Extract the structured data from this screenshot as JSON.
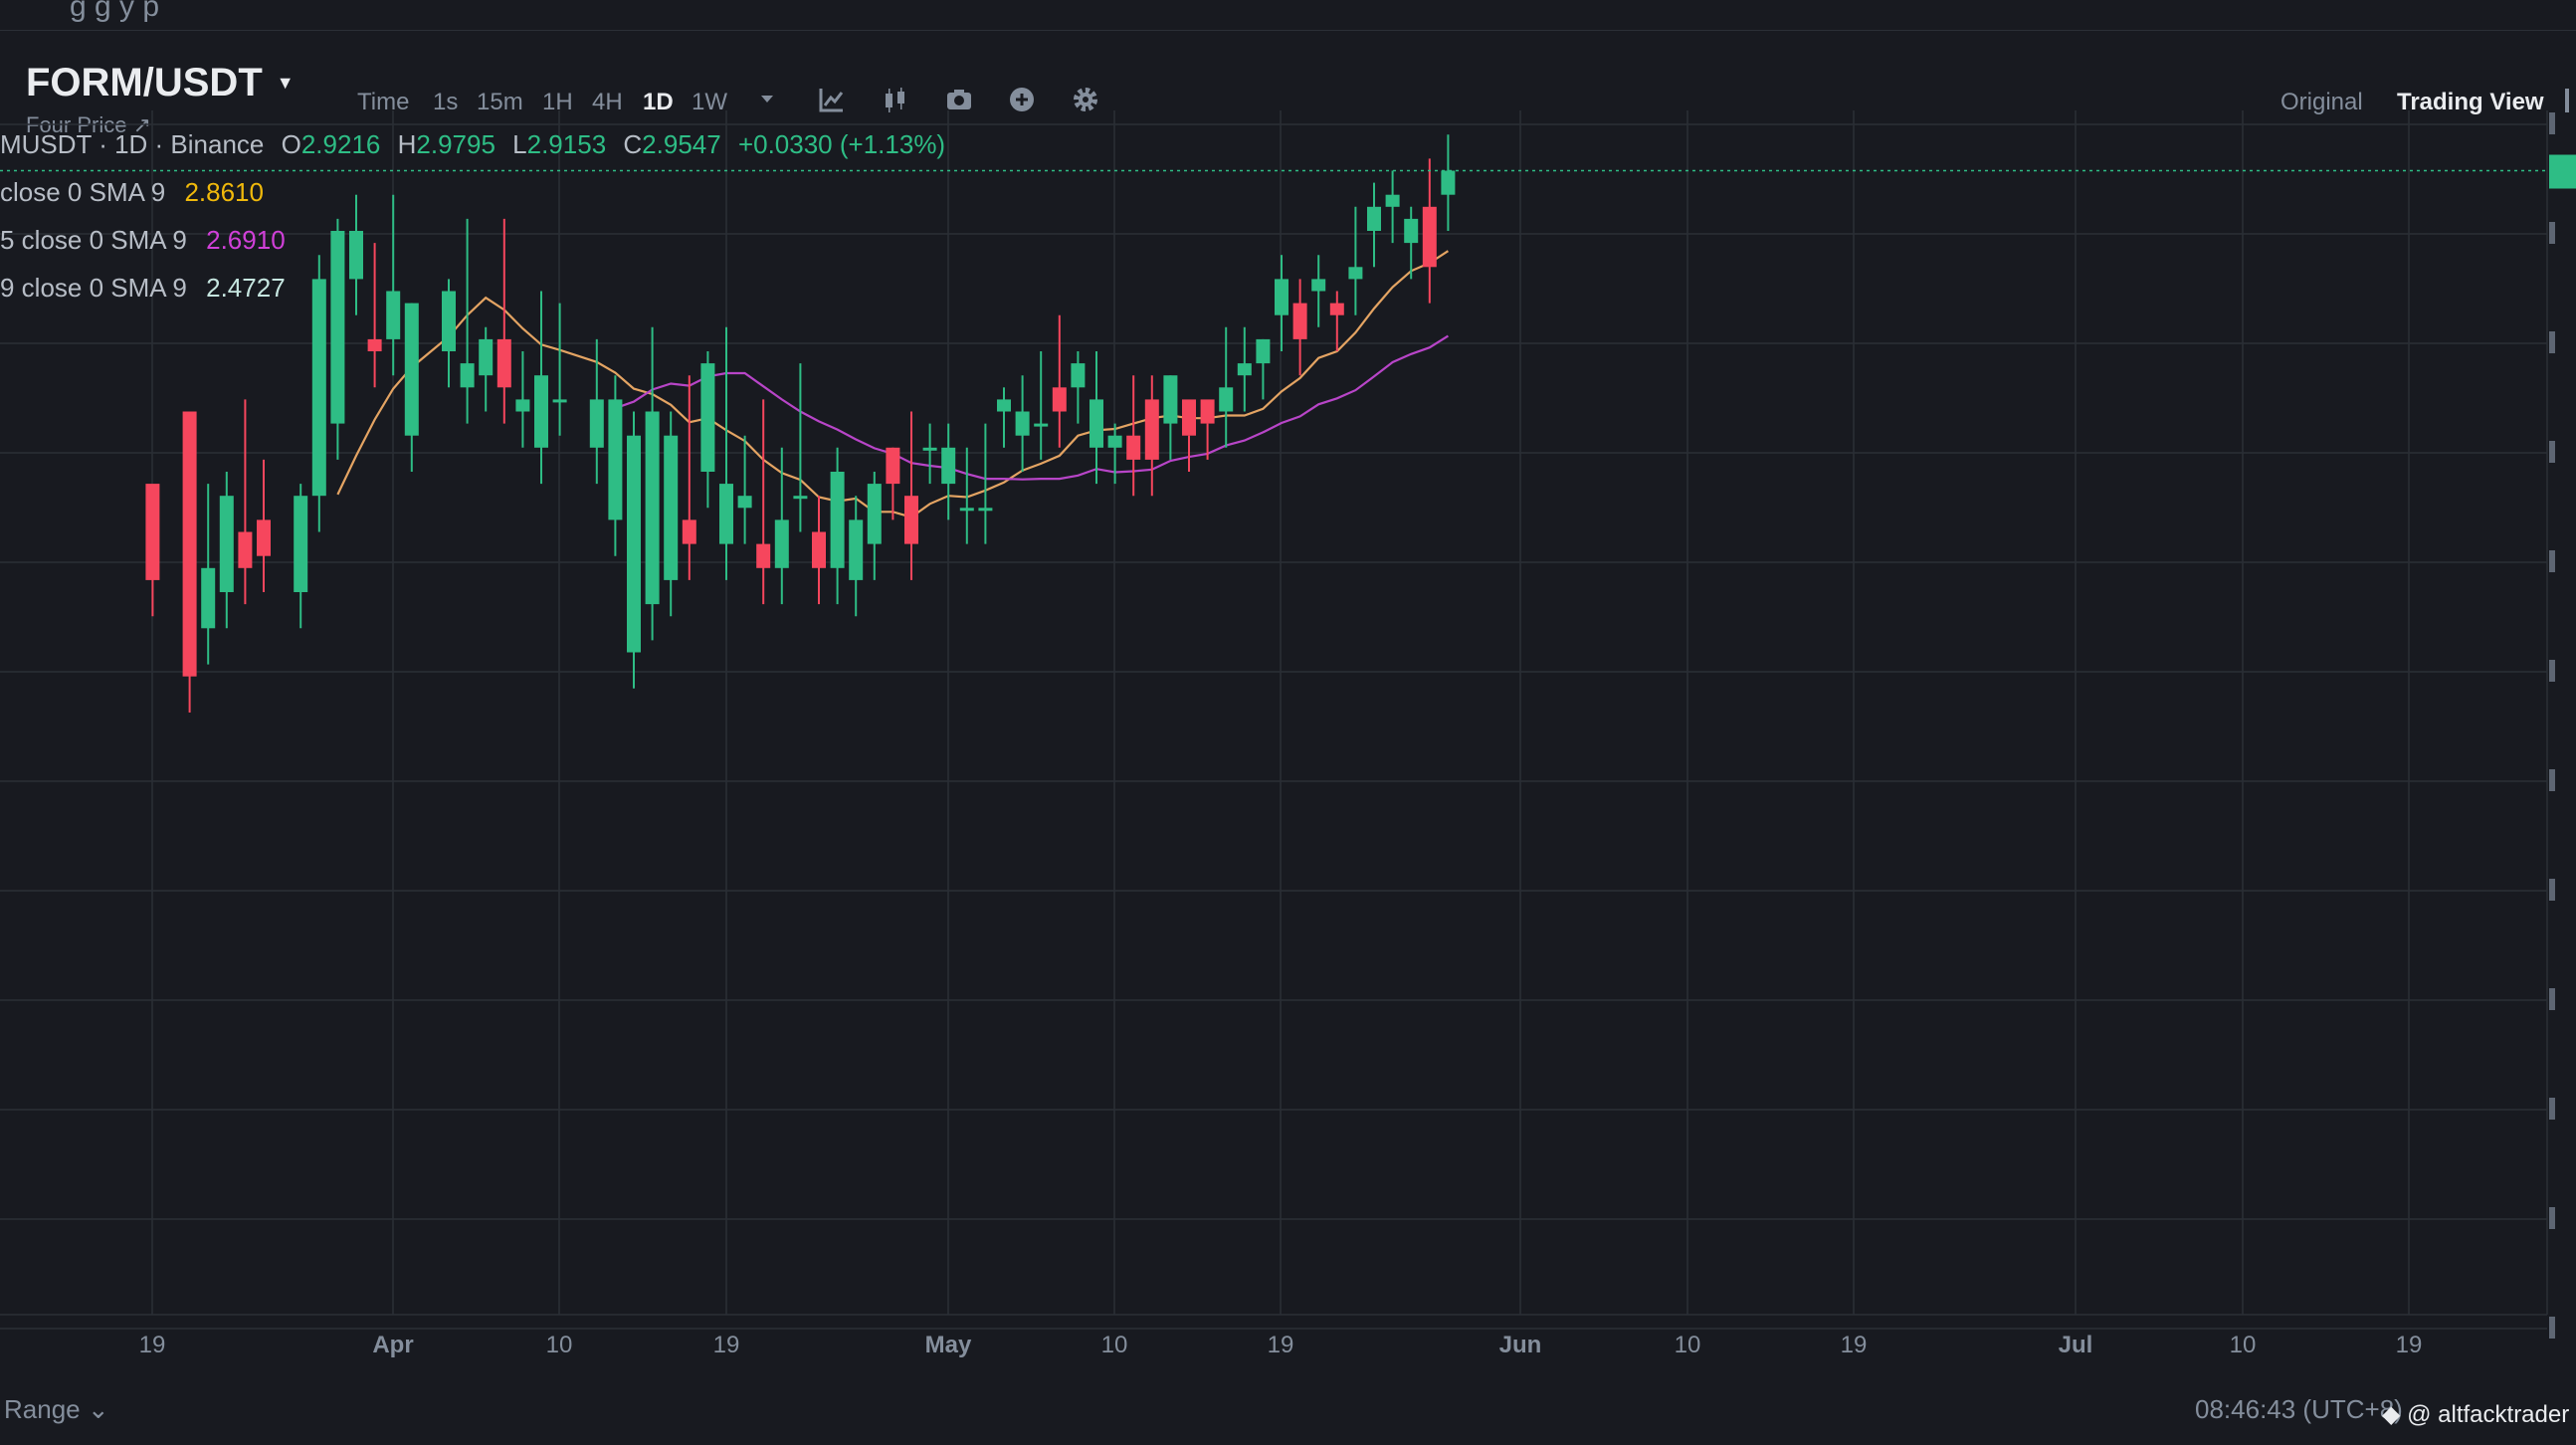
{
  "header": {
    "pair": "FORM/USDT",
    "subtitle": "Four Price ↗",
    "top_partial_text": "g          g      y          p"
  },
  "toolbar": {
    "timeframes": [
      "Time",
      "1s",
      "15m",
      "1H",
      "4H",
      "1D",
      "1W"
    ],
    "active_timeframe": "1D",
    "views": [
      "Original",
      "Trading View"
    ],
    "active_view": "Trading View"
  },
  "legend": {
    "title": "MUSDT · 1D · Binance",
    "ohlc": {
      "O": "2.9216",
      "H": "2.9795",
      "L": "2.9153",
      "C": "2.9547",
      "change": "+0.0330 (+1.13%)"
    },
    "ma": [
      {
        "label": "close 0 SMA 9",
        "value": "2.8610",
        "color": "#f0b90b"
      },
      {
        "label": "5 close 0 SMA 9",
        "value": "2.6910",
        "color": "#d040d8"
      },
      {
        "label": "9 close 0 SMA 9",
        "value": "2.4727",
        "color": "#c6e6e0"
      }
    ]
  },
  "colors": {
    "up": "#2ebd85",
    "down": "#f6465d",
    "grid": "#2b2f36",
    "ma_fast": "#e4a463",
    "ma_mid": "#b845c8",
    "ma_slow": "#8fd0c4",
    "price_line": "#2ebd85"
  },
  "footer": {
    "range_label": "Range ⌄",
    "clock": "08:46:43 (UTC+8)",
    "watermark": "◆ @ altfacktrader"
  },
  "chart_data": {
    "type": "candlestick",
    "symbol": "FORM/USDT",
    "interval": "1D",
    "exchange": "Binance",
    "x_tick_labels": [
      "19",
      "Apr",
      "10",
      "19",
      "May",
      "10",
      "19",
      "Jun",
      "10",
      "19",
      "Jul",
      "10",
      "19"
    ],
    "y_range": [
      0,
      100
    ],
    "grid": true,
    "legend_position": "top-left",
    "candles": [
      [
        9,
        69,
        61,
        67
      ],
      [
        11,
        75,
        53,
        71
      ],
      [
        12,
        57,
        62,
        69
      ],
      [
        13,
        60,
        68,
        70
      ],
      [
        14,
        65,
        62,
        76
      ],
      [
        15,
        66,
        63,
        71
      ],
      [
        17,
        60,
        68,
        69
      ],
      [
        18,
        68,
        86,
        88
      ],
      [
        19,
        74,
        90,
        91
      ],
      [
        20,
        86,
        90,
        93
      ],
      [
        21,
        81,
        80,
        89
      ],
      [
        22,
        81,
        85,
        93
      ],
      [
        23,
        73,
        84,
        84
      ],
      [
        25,
        80,
        85,
        86
      ],
      [
        26,
        77,
        79,
        91
      ],
      [
        27,
        78,
        81,
        82
      ],
      [
        28,
        81,
        77,
        91
      ],
      [
        29,
        75,
        76,
        80
      ],
      [
        30,
        72,
        78,
        85
      ],
      [
        31,
        76,
        76,
        84
      ],
      [
        33,
        72,
        76,
        81
      ],
      [
        34,
        66,
        76,
        78
      ],
      [
        35,
        55,
        73,
        75
      ],
      [
        36,
        59,
        75,
        82
      ],
      [
        37,
        61,
        73,
        75
      ],
      [
        38,
        66,
        64,
        78
      ],
      [
        39,
        70,
        79,
        80
      ],
      [
        40,
        64,
        69,
        82
      ],
      [
        41,
        67,
        68,
        73
      ],
      [
        42,
        64,
        62,
        76
      ],
      [
        43,
        62,
        66,
        72
      ],
      [
        44,
        68,
        68,
        79
      ],
      [
        45,
        65,
        62,
        68
      ],
      [
        46,
        62,
        70,
        72
      ],
      [
        47,
        61,
        66,
        68
      ],
      [
        48,
        64,
        69,
        70
      ],
      [
        49,
        72,
        69,
        72
      ],
      [
        50,
        68,
        64,
        75
      ],
      [
        51,
        72,
        72,
        74
      ],
      [
        52,
        69,
        72,
        74
      ],
      [
        53,
        67,
        67,
        72
      ],
      [
        54,
        67,
        67,
        74
      ],
      [
        55,
        75,
        76,
        77
      ],
      [
        56,
        73,
        75,
        78
      ],
      [
        57,
        74,
        74,
        80
      ],
      [
        58,
        77,
        75,
        83
      ],
      [
        59,
        77,
        79,
        80
      ],
      [
        60,
        72,
        76,
        80
      ],
      [
        61,
        72,
        73,
        74
      ],
      [
        62,
        73,
        71,
        78
      ],
      [
        63,
        76,
        71,
        78
      ],
      [
        64,
        74,
        78,
        78
      ],
      [
        65,
        76,
        73,
        73
      ],
      [
        66,
        76,
        74,
        74
      ],
      [
        67,
        75,
        77,
        82
      ],
      [
        68,
        78,
        79,
        82
      ],
      [
        69,
        79,
        81,
        81
      ],
      [
        70,
        83,
        86,
        88
      ],
      [
        71,
        84,
        81,
        86
      ],
      [
        72,
        85,
        86,
        88
      ],
      [
        73,
        84,
        83,
        85
      ],
      [
        74,
        86,
        87,
        92
      ],
      [
        75,
        90,
        92,
        94
      ],
      [
        76,
        92,
        93,
        95
      ],
      [
        77,
        89,
        91,
        92
      ],
      [
        78,
        92,
        87,
        96
      ],
      [
        79,
        93,
        95,
        98
      ]
    ]
  }
}
